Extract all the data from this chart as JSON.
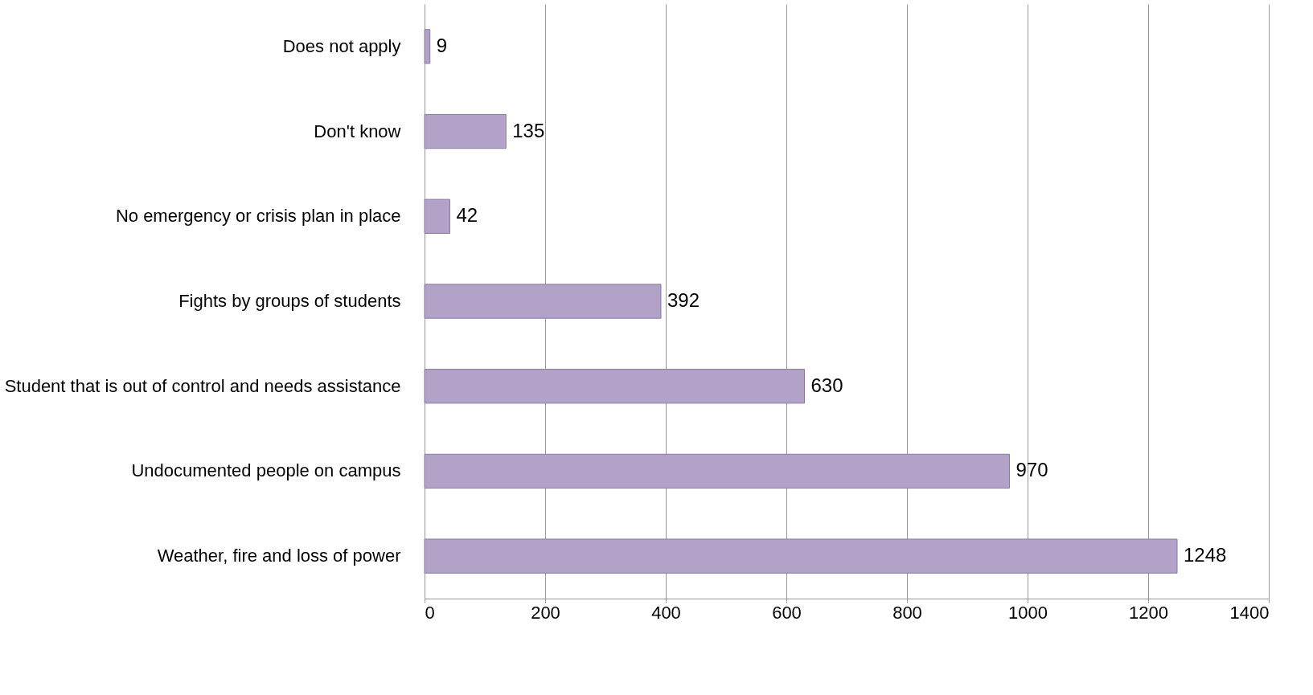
{
  "chart_data": {
    "type": "bar",
    "orientation": "horizontal",
    "categories": [
      "Does not apply",
      "Don't know",
      "No emergency or crisis plan in place",
      "Fights by groups of students",
      "Student that is out of control and needs assistance",
      "Undocumented people on campus",
      "Weather, fire and loss of power"
    ],
    "values": [
      9,
      135,
      42,
      392,
      630,
      970,
      1248
    ],
    "color": "#b3a2c7",
    "xlim": [
      0,
      1400
    ],
    "xticks": [
      0,
      200,
      400,
      600,
      800,
      1000,
      1200,
      1400
    ],
    "grid": "x",
    "data_labels": true
  }
}
